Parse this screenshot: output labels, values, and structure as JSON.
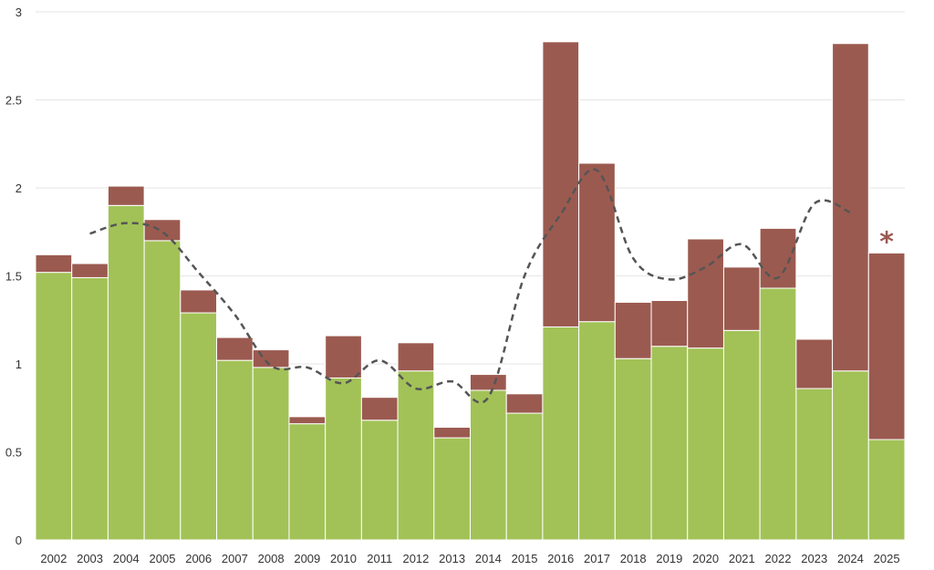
{
  "chart_data": {
    "type": "bar",
    "stacked": true,
    "categories": [
      "2002",
      "2003",
      "2004",
      "2005",
      "2006",
      "2007",
      "2008",
      "2009",
      "2010",
      "2011",
      "2012",
      "2013",
      "2014",
      "2015",
      "2016",
      "2017",
      "2018",
      "2019",
      "2020",
      "2021",
      "2022",
      "2023",
      "2024",
      "2025"
    ],
    "series": [
      {
        "color": "#a2c257",
        "values": [
          1.52,
          1.49,
          1.9,
          1.7,
          1.29,
          1.02,
          0.98,
          0.66,
          0.92,
          0.68,
          0.96,
          0.58,
          0.85,
          0.72,
          1.21,
          1.24,
          1.03,
          1.1,
          1.09,
          1.19,
          1.43,
          0.86,
          0.96,
          0.57
        ]
      },
      {
        "color": "#9b5a50",
        "values": [
          0.1,
          0.08,
          0.11,
          0.12,
          0.13,
          0.13,
          0.1,
          0.04,
          0.24,
          0.13,
          0.16,
          0.06,
          0.09,
          0.11,
          1.62,
          0.9,
          0.32,
          0.26,
          0.62,
          0.36,
          0.34,
          0.28,
          1.86,
          1.06
        ]
      }
    ],
    "trend": {
      "style": "dashed",
      "color": "#555555",
      "x": [
        "2003",
        "2004",
        "2005",
        "2006",
        "2007",
        "2008",
        "2009",
        "2010",
        "2011",
        "2012",
        "2013",
        "2014",
        "2015",
        "2016",
        "2017",
        "2018",
        "2019",
        "2020",
        "2021",
        "2022",
        "2023",
        "2024"
      ],
      "values": [
        1.74,
        1.8,
        1.75,
        1.52,
        1.28,
        0.99,
        0.98,
        0.89,
        1.02,
        0.86,
        0.9,
        0.81,
        1.5,
        1.85,
        2.1,
        1.6,
        1.48,
        1.55,
        1.68,
        1.49,
        1.91,
        1.86
      ]
    },
    "annotations": [
      {
        "category": "2025",
        "text": "*",
        "color": "#9b5a50"
      }
    ],
    "ylim": [
      0,
      3
    ],
    "yticks": [
      "0",
      "0.5",
      "1",
      "1.5",
      "2",
      "2.5",
      "3"
    ],
    "grid": true,
    "title": "",
    "xlabel": "",
    "ylabel": ""
  }
}
